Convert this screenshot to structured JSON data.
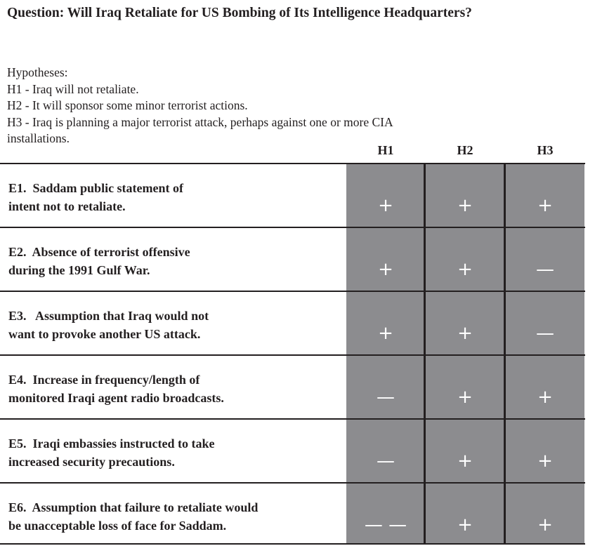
{
  "question": "Question: Will Iraq Retaliate for US Bombing of Its Intelligence Headquarters?",
  "hypotheses": {
    "heading": "Hypotheses:",
    "items": [
      "H1 - Iraq will not retaliate.",
      "H2 - It will sponsor some minor terrorist actions.",
      "H3 - Iraq is planning a major terrorist attack, perhaps against one or more CIA",
      "installations."
    ]
  },
  "columns": [
    "H1",
    "H2",
    "H3"
  ],
  "cell_color": "#8c8c8f",
  "rows": [
    {
      "evidence": "E1.  Saddam public statement of\nintent not to retaliate.",
      "ratings": [
        "+",
        "+",
        "+"
      ]
    },
    {
      "evidence": "E2.  Absence of terrorist offensive\nduring the 1991 Gulf War.",
      "ratings": [
        "+",
        "+",
        "—"
      ]
    },
    {
      "evidence": "E3.   Assumption that Iraq would not\nwant to provoke another US attack.",
      "ratings": [
        "+",
        "+",
        "—"
      ]
    },
    {
      "evidence": "E4.  Increase in frequency/length of\nmonitored Iraqi agent radio broadcasts.",
      "ratings": [
        "—",
        "+",
        "+"
      ]
    },
    {
      "evidence": "E5.  Iraqi embassies instructed to take\nincreased security precautions.",
      "ratings": [
        "—",
        "+",
        "+"
      ]
    },
    {
      "evidence": "E6.  Assumption that failure to retaliate would\nbe unacceptable loss of face for Saddam.",
      "ratings": [
        "— —",
        "+",
        "+"
      ]
    }
  ]
}
